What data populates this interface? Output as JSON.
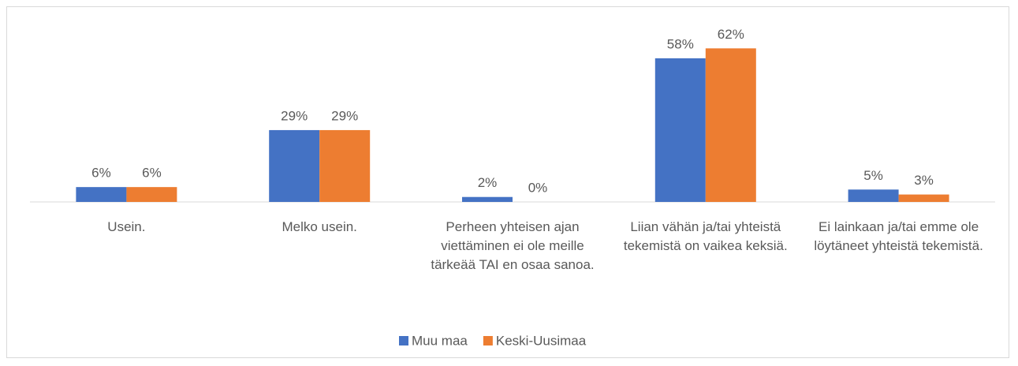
{
  "chart_data": {
    "type": "bar",
    "categories": [
      "Usein.",
      "Melko usein.",
      "Perheen yhteisen ajan viettäminen ei ole meille tärkeää TAI en osaa sanoa.",
      "Liian vähän ja/tai yhteistä tekemistä on vaikea keksiä.",
      "Ei lainkaan ja/tai emme ole löytäneet yhteistä tekemistä."
    ],
    "series": [
      {
        "name": "Muu maa",
        "color": "#4472c4",
        "values": [
          6,
          29,
          2,
          58,
          5
        ],
        "value_labels": [
          "6%",
          "29%",
          "2%",
          "58%",
          "5%"
        ]
      },
      {
        "name": "Keski-Uusimaa",
        "color": "#ed7d31",
        "values": [
          6,
          29,
          0,
          62,
          3
        ],
        "value_labels": [
          "6%",
          "29%",
          "0%",
          "62%",
          "3%"
        ]
      }
    ],
    "legend": "bottom"
  }
}
